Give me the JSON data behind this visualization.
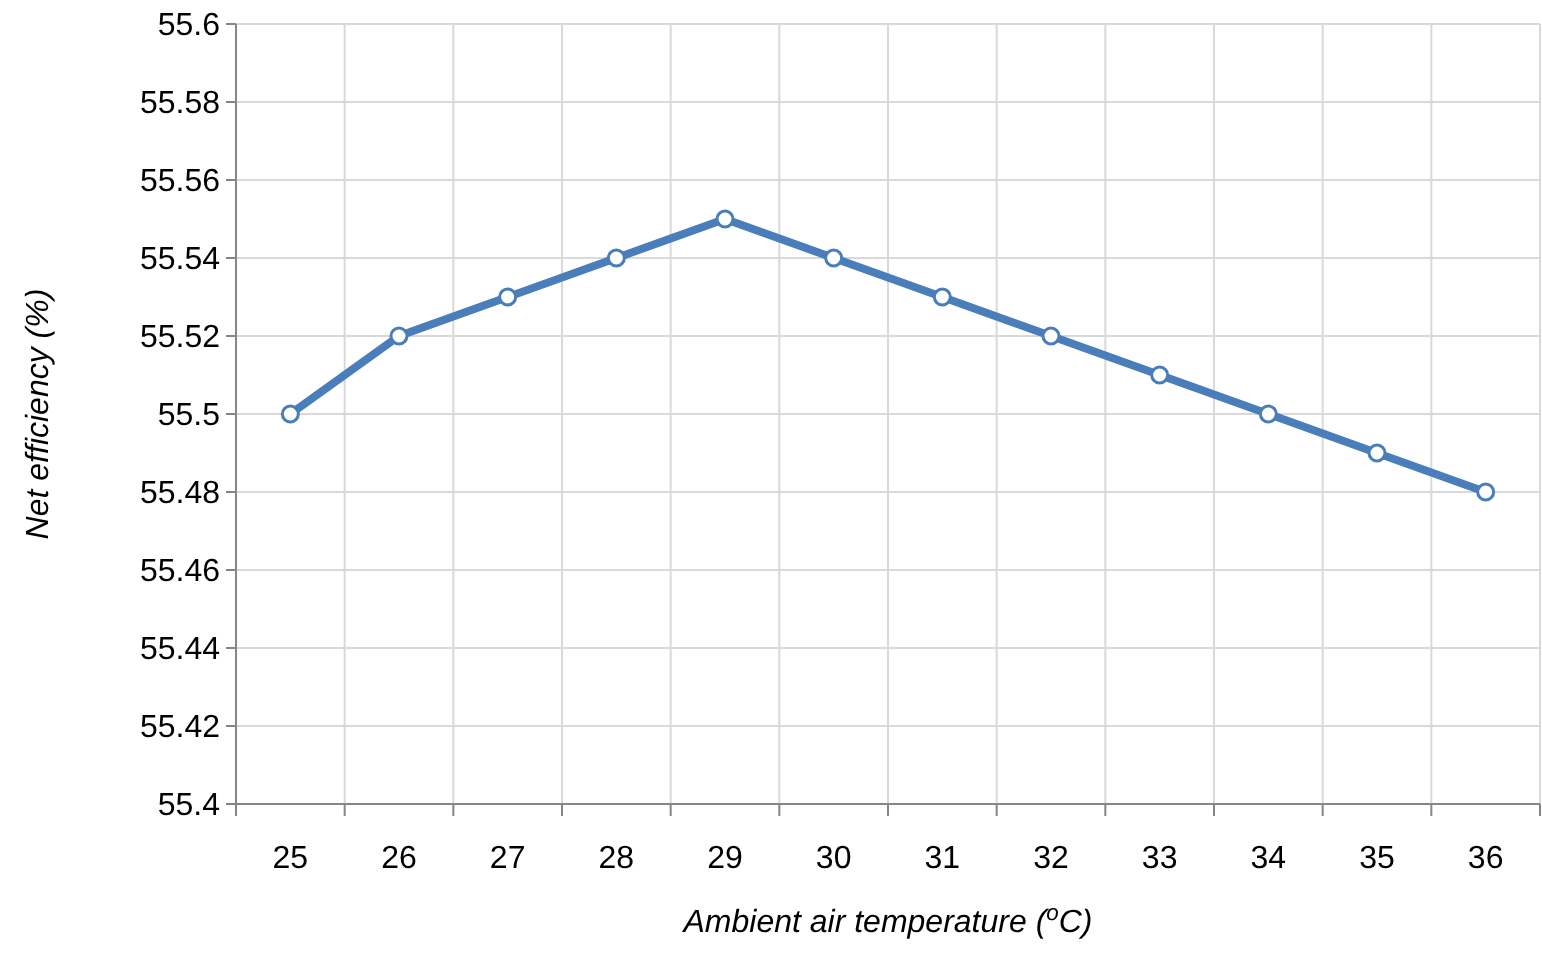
{
  "chart_data": {
    "type": "line",
    "xlabel": "Ambient air temperature  ($^{o}$C)",
    "ylabel": "Net efficiency  (%)",
    "categories": [
      "25",
      "26",
      "27",
      "28",
      "29",
      "30",
      "31",
      "32",
      "33",
      "34",
      "35",
      "36"
    ],
    "series": [
      {
        "color": "#4a7ebb",
        "values": [
          55.5,
          55.52,
          55.53,
          55.54,
          55.55,
          55.54,
          55.53,
          55.52,
          55.51,
          55.5,
          55.49,
          55.48
        ]
      }
    ],
    "ylim": [
      55.4,
      55.6
    ],
    "yticks": [
      55.4,
      55.42,
      55.44,
      55.46,
      55.48,
      55.5,
      55.52,
      55.54,
      55.56,
      55.58,
      55.6
    ],
    "grid": true,
    "marker": "circle",
    "line_style": "solid"
  }
}
